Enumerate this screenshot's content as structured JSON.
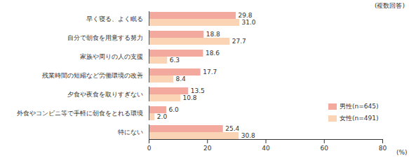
{
  "chart_data": {
    "type": "bar",
    "orientation": "horizontal",
    "annotation": "(複数回答)",
    "x_label": "(%)",
    "categories": [
      "早く寝る、よく眠る",
      "自分で朝食を用意する努力",
      "家族や周りの人の支援",
      "残業時間の短縮など労働環境の改善",
      "夕食や夜食を取りすぎない",
      "外食やコンビニ等で手軽に朝食をとれる環境",
      "特にない"
    ],
    "series": [
      {
        "name": "男性(n=645)",
        "color": "#f4a99f",
        "values": [
          29.8,
          18.8,
          18.6,
          17.7,
          13.5,
          6.0,
          25.4
        ],
        "value_labels": [
          "29.8",
          "18.8",
          "18.6",
          "17.7",
          "13.5",
          "6.0",
          "25.4"
        ]
      },
      {
        "name": "女性(n=491)",
        "color": "#fbd4b6",
        "values": [
          31.0,
          27.7,
          6.3,
          8.4,
          10.8,
          2.0,
          30.8
        ],
        "value_labels": [
          "31.0",
          "27.7",
          "6.3",
          "8.4",
          "10.8",
          "2.0",
          "30.8"
        ]
      }
    ],
    "xlim": [
      0,
      80
    ],
    "xticks": [
      0,
      20,
      40,
      60,
      80
    ],
    "data_labels": true,
    "grid": false,
    "legend": "bottom-right"
  }
}
